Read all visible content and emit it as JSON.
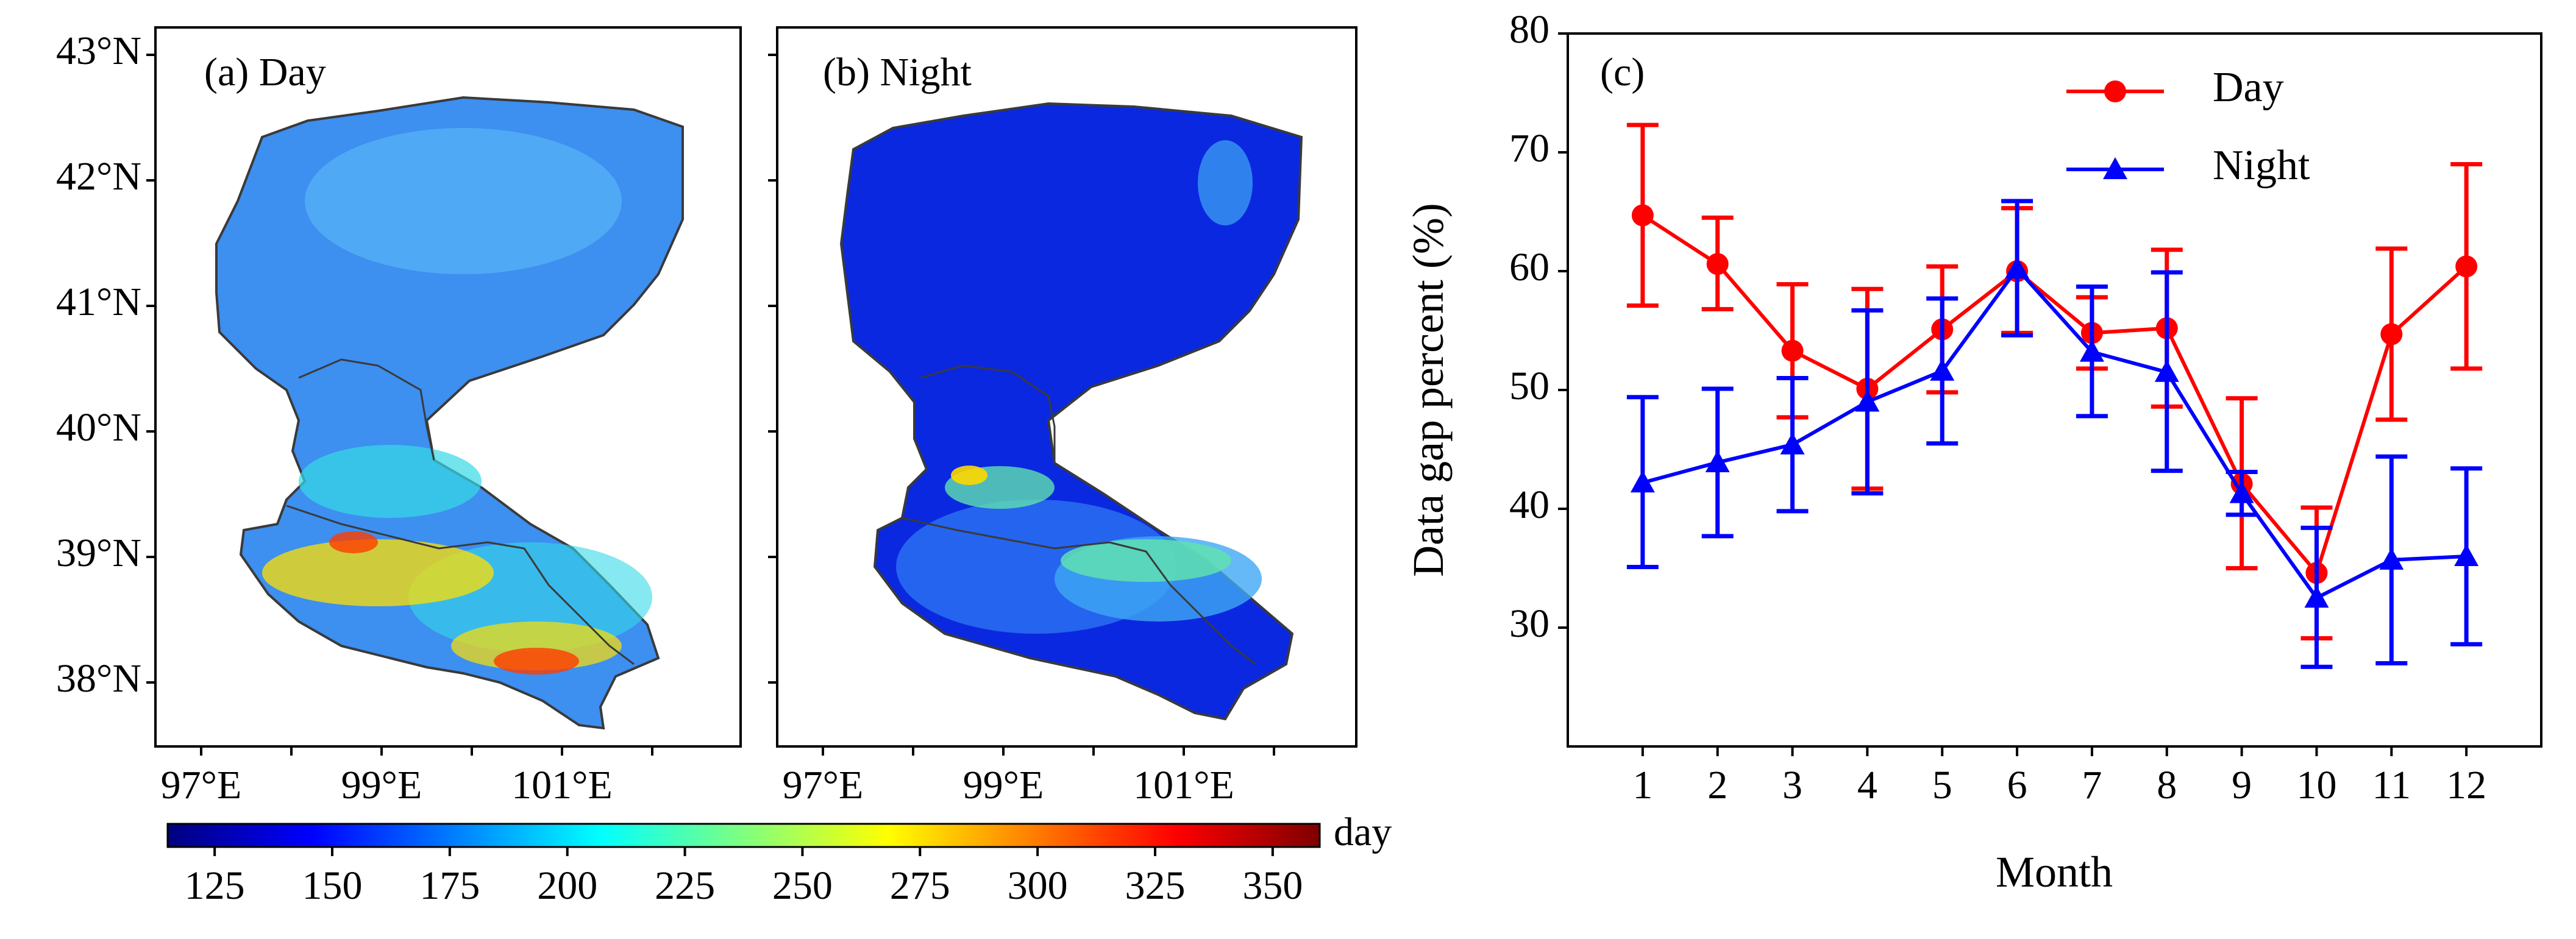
{
  "maps": {
    "panel_a_label": "(a) Day",
    "panel_b_label": "(b) Night",
    "lat_ticks": [
      {
        "value": 43,
        "label": "43°N"
      },
      {
        "value": 42,
        "label": "42°N"
      },
      {
        "value": 41,
        "label": "41°N"
      },
      {
        "value": 40,
        "label": "40°N"
      },
      {
        "value": 39,
        "label": "39°N"
      },
      {
        "value": 38,
        "label": "38°N"
      }
    ],
    "lon_ticks": [
      {
        "value": 97,
        "label": "97°E"
      },
      {
        "value": 98,
        "label": ""
      },
      {
        "value": 99,
        "label": "99°E"
      },
      {
        "value": 100,
        "label": ""
      },
      {
        "value": 101,
        "label": "101°E"
      },
      {
        "value": 102,
        "label": ""
      }
    ],
    "colorbar": {
      "unit": "day",
      "min": 115,
      "max": 360,
      "ticks": [
        125,
        150,
        175,
        200,
        225,
        250,
        275,
        300,
        325,
        350
      ],
      "colors": [
        "#00007f",
        "#0000ff",
        "#007fff",
        "#00ffff",
        "#7fff7f",
        "#ffff00",
        "#ff7f00",
        "#ff0000",
        "#7f0000"
      ]
    },
    "day_map_colors": [
      "#3d8ff0",
      "#59b4f5",
      "#36d8e6",
      "#ffe000",
      "#ff3c00"
    ],
    "night_map_colors": [
      "#0a28e0",
      "#2a6ff0",
      "#3fa8f4",
      "#5fe0b0",
      "#ffd800"
    ]
  },
  "chart_data": {
    "type": "line",
    "panel_label": "(c)",
    "title": "",
    "xlabel": "Month",
    "ylabel": "Data gap percent (%)",
    "x": [
      1,
      2,
      3,
      4,
      5,
      6,
      7,
      8,
      9,
      10,
      11,
      12
    ],
    "xlim": [
      0,
      13
    ],
    "ylim": [
      20,
      80
    ],
    "yticks": [
      30,
      40,
      50,
      60,
      70,
      80
    ],
    "legend_position": "top-right",
    "series": [
      {
        "name": "Day",
        "color": "#ff0000",
        "marker": "circle",
        "values": [
          64.7,
          60.6,
          53.3,
          50.1,
          55.1,
          60.0,
          54.8,
          55.2,
          42.1,
          34.6,
          54.7,
          60.4
        ],
        "err_low": [
          57.1,
          56.8,
          47.7,
          41.7,
          49.8,
          54.8,
          51.8,
          48.6,
          35.0,
          29.1,
          47.5,
          51.8
        ],
        "err_high": [
          72.3,
          64.5,
          58.9,
          58.5,
          60.4,
          65.3,
          57.8,
          61.8,
          49.3,
          40.1,
          61.9,
          69.0
        ]
      },
      {
        "name": "Night",
        "color": "#0000ff",
        "marker": "triangle",
        "values": [
          42.2,
          43.9,
          45.4,
          49.0,
          51.6,
          60.2,
          53.2,
          51.5,
          41.3,
          32.5,
          35.7,
          36.0
        ],
        "err_low": [
          35.1,
          37.7,
          39.8,
          41.3,
          45.5,
          54.6,
          47.8,
          43.2,
          39.5,
          26.7,
          27.0,
          28.6
        ],
        "err_high": [
          49.4,
          50.1,
          51.0,
          56.7,
          57.7,
          65.9,
          58.7,
          59.9,
          43.1,
          38.4,
          44.4,
          43.4
        ]
      }
    ]
  }
}
